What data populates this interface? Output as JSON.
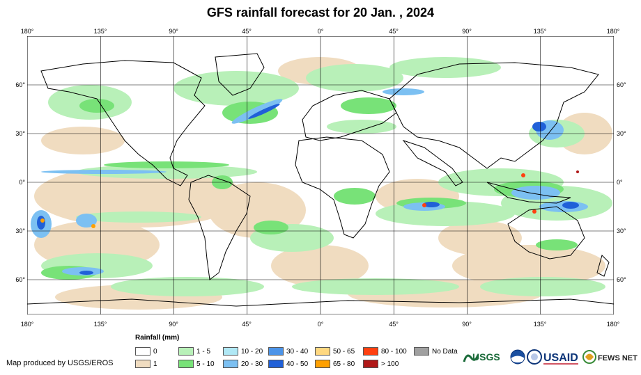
{
  "title": "GFS rainfall forecast for 20 Jan. , 2024",
  "axes": {
    "longitude_ticks": [
      "180°",
      "135°",
      "90°",
      "45°",
      "0°",
      "45°",
      "90°",
      "135°",
      "180°"
    ],
    "latitude_ticks": [
      "60°",
      "30°",
      "0°",
      "30°",
      "60°"
    ]
  },
  "legend": {
    "title": "Rainfall (mm)",
    "items": [
      {
        "label": "0",
        "color": "#ffffff"
      },
      {
        "label": "1",
        "color": "#f0dcc0"
      },
      {
        "label": "1 - 5",
        "color": "#b8f0b8"
      },
      {
        "label": "5 - 10",
        "color": "#78e278"
      },
      {
        "label": "10 - 20",
        "color": "#b0e8f5"
      },
      {
        "label": "20 - 30",
        "color": "#7cc0f2"
      },
      {
        "label": "30 - 40",
        "color": "#4c94e8"
      },
      {
        "label": "40 - 50",
        "color": "#2060d8"
      },
      {
        "label": "50 - 65",
        "color": "#ffd880"
      },
      {
        "label": "65 - 80",
        "color": "#ffa000"
      },
      {
        "label": "80 - 100",
        "color": "#ff4010"
      },
      {
        "label": "> 100",
        "color": "#b01818"
      },
      {
        "label": "No Data",
        "color": "#a0a0a0"
      }
    ]
  },
  "credit": "Map produced by USGS/EROS",
  "logos": [
    {
      "name": "usgs-logo",
      "text": "USGS"
    },
    {
      "name": "noaa-logo",
      "text": ""
    },
    {
      "name": "usaid-seal-logo",
      "text": ""
    },
    {
      "name": "usaid-logo",
      "text": "USAID"
    },
    {
      "name": "fews-net-logo",
      "text": "FEWS NET"
    }
  ]
}
